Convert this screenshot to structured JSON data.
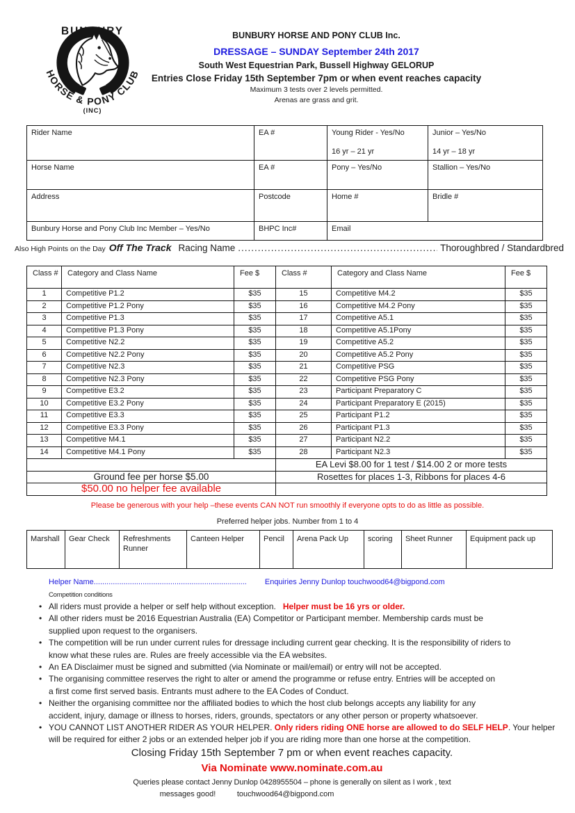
{
  "colors": {
    "blue": "#1d1bdf",
    "red": "#e60d0d"
  },
  "logo": {
    "top": "BUNBURY",
    "arc": "HORSE & PONY CLUB",
    "inc": "(INC)"
  },
  "header": {
    "title": "BUNBURY HORSE AND PONY CLUB Inc.",
    "subtitle": "DRESSAGE – SUNDAY September  24th 2017",
    "venue": "South West Equestrian Park, Bussell Highway GELORUP",
    "entries_close": "Entries Close Friday 15th September 7pm or when event reaches capacity",
    "note1": "Maximum 3 tests over 2 levels permitted.",
    "note2": "Arenas are grass and grit."
  },
  "rider_table": {
    "rider_name": "Rider Name",
    "ea1": "EA #",
    "young_rider": "Young Rider - Yes/No",
    "young_rider_age": "16 yr – 21 yr",
    "junior": "Junior – Yes/No",
    "junior_age": "14 yr – 18 yr",
    "horse_name": "Horse Name",
    "ea2": "EA #",
    "pony": "Pony – Yes/No",
    "stallion": "Stallion – Yes/No",
    "address": "Address",
    "postcode": "Postcode",
    "home": "Home #",
    "bridle": "Bridle #",
    "member": "Bunbury Horse and Pony Club Inc Member – Yes/No",
    "bhpc": "BHPC Inc#",
    "email": "Email"
  },
  "offtrack": {
    "prefix": "Also High Points on the Day",
    "title": "Off The Track",
    "racing_name": "Racing Name",
    "dots": "..............................................................",
    "suffix": "Thoroughbred / Standardbred"
  },
  "class_table": {
    "headers": [
      "Class #",
      "Category and Class Name",
      "Fee $"
    ],
    "rows": [
      {
        "num": "1",
        "name": "Competitive P1.2",
        "fee": "$35"
      },
      {
        "num": "2",
        "name": "Competitive P1.2 Pony",
        "fee": "$35"
      },
      {
        "num": "3",
        "name": "Competitive P1.3",
        "fee": "$35"
      },
      {
        "num": "4",
        "name": "Competitive P1.3 Pony",
        "fee": "$35"
      },
      {
        "num": "5",
        "name": "Competitive N2.2",
        "fee": "$35"
      },
      {
        "num": "6",
        "name": "Competitive N2.2 Pony",
        "fee": "$35"
      },
      {
        "num": "7",
        "name": "Competitive N2.3",
        "fee": "$35"
      },
      {
        "num": "8",
        "name": "Competitive N2.3 Pony",
        "fee": "$35"
      },
      {
        "num": "9",
        "name": "Competitive E3.2",
        "fee": "$35"
      },
      {
        "num": "10",
        "name": "Competitive E3.2 Pony",
        "fee": "$35"
      },
      {
        "num": "11",
        "name": "Competitive E3.3",
        "fee": "$35"
      },
      {
        "num": "12",
        "name": "Competitive E3.3 Pony",
        "fee": "$35"
      },
      {
        "num": "13",
        "name": "Competitive M4.1",
        "fee": "$35"
      },
      {
        "num": "14",
        "name": "Competitive M4.1 Pony",
        "fee": "$35"
      },
      {
        "num": "15",
        "name": "Competitive M4.2",
        "fee": "$35"
      },
      {
        "num": "16",
        "name": "Competitive M4.2 Pony",
        "fee": "$35"
      },
      {
        "num": "17",
        "name": "Competitive A5.1",
        "fee": "$35"
      },
      {
        "num": "18",
        "name": "Competitive A5.1Pony",
        "fee": "$35"
      },
      {
        "num": "19",
        "name": "Competitive A5.2",
        "fee": "$35"
      },
      {
        "num": "20",
        "name": "Competitive A5.2 Pony",
        "fee": "$35"
      },
      {
        "num": "21",
        "name": "Competitive PSG",
        "fee": "$35"
      },
      {
        "num": "22",
        "name": "Competitive PSG Pony",
        "fee": "$35"
      },
      {
        "num": "23",
        "name": "Participant Preparatory C",
        "fee": "$35"
      },
      {
        "num": "24",
        "name": "Participant Preparatory E (2015)",
        "fee": "$35"
      },
      {
        "num": "25",
        "name": "Participant P1.2",
        "fee": "$35"
      },
      {
        "num": "26",
        "name": "Participant P1.3",
        "fee": "$35"
      },
      {
        "num": "27",
        "name": "Participant N2.2",
        "fee": "$35"
      },
      {
        "num": "28",
        "name": "Participant N2.3",
        "fee": "$35"
      }
    ],
    "levy_note": "EA Levi $8.00 for 1 test / $14.00 2 or more tests",
    "ground_fee": "Ground fee per horse $5.00",
    "rosettes": "Rosettes for places 1-3, Ribbons for places 4-6",
    "helper_fee": "$50.00 no helper fee available"
  },
  "helper": {
    "plea": "Please be generous with your help –these events CAN NOT run smoothly if everyone opts to do as little as possible.",
    "jobs_title": "Preferred helper jobs. Number from 1 to 4",
    "jobs": [
      "Marshall",
      "Gear Check",
      "Refreshments Runner",
      "Canteen Helper",
      "Pencil",
      "Arena Pack Up",
      "scoring",
      "Sheet Runner",
      "Equipment pack up"
    ],
    "helper_name_line": "Helper Name........................................................................",
    "enquiries": "Enquiries Jenny Dunlop touchwood64@bigpond.com"
  },
  "conditions": {
    "heading": "Competition conditions",
    "bullets": [
      [
        {
          "t": "All riders must provide a helper or self help without exception.   "
        },
        {
          "t": "Helper must be 16 yrs or older.",
          "c": "red",
          "b": true
        }
      ],
      [
        {
          "t": "All other riders must be 2016 Equestrian Australia (EA) Competitor or Participant member. Membership cards must be\nsupplied upon request to the organisers."
        }
      ],
      [
        {
          "t": "The competition will be run under current rules for dressage including current gear checking. It is the responsibility of riders to\nknow what these rules are. Rules are freely accessible via the EA websites."
        }
      ],
      [
        {
          "t": "An EA Disclaimer must be signed and submitted (via Nominate or mail/email) or entry will not be accepted."
        }
      ],
      [
        {
          "t": "The organising committee reserves the right to alter or amend the programme or refuse entry. Entries will be accepted on\na first come first served basis. Entrants must adhere to the EA Codes of Conduct."
        }
      ],
      [
        {
          "t": "Neither the organising committee nor the affiliated bodies to which the host club belongs accepts any liability for any\naccident, injury, damage or illness to horses, riders, grounds, spectators or any other person or property whatsoever."
        }
      ],
      [
        {
          "t": "YOU CANNOT LIST ANOTHER RIDER AS YOUR HELPER. "
        },
        {
          "t": "Only riders riding ONE horse are allowed to do SELF HELP",
          "c": "red",
          "b": true
        },
        {
          "t": ". Your helper\nwill be required for either 2 jobs or an extended helper job if you are riding more than one horse at the competition."
        }
      ]
    ]
  },
  "footer": {
    "closing": "Closing Friday 15th September  7 pm or when event reaches capacity.",
    "nominate": "Via Nominate www.nominate.com.au",
    "queries1": "Queries please contact Jenny Dunlop 0428955504 – phone is generally on silent as I work , text",
    "queries2": "messages good!          touchwood64@bigpond.com"
  }
}
